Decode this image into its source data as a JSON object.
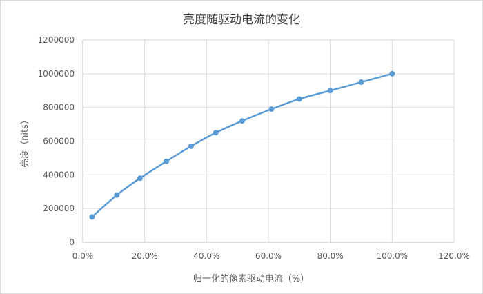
{
  "chart_data": {
    "type": "scatter",
    "title": "亮度随驱动电流的变化",
    "xlabel": "归一化的像素驱动电流（%）",
    "ylabel": "亮度（nits）",
    "x": [
      3,
      11,
      18.5,
      27,
      35,
      43,
      51.5,
      61,
      70,
      80,
      90,
      100
    ],
    "series": [
      {
        "values": [
          150000,
          280000,
          380000,
          480000,
          570000,
          650000,
          720000,
          790000,
          850000,
          900000,
          950000,
          1000000
        ],
        "color": "#5b9bd5",
        "line": "smooth",
        "markers": true
      }
    ],
    "xlim": [
      0,
      120
    ],
    "ylim": [
      0,
      1200000
    ],
    "x_ticks": [
      "0.0%",
      "20.0%",
      "40.0%",
      "60.0%",
      "80.0%",
      "100.0%",
      "120.0%"
    ],
    "y_ticks": [
      "0",
      "200000",
      "400000",
      "600000",
      "800000",
      "1000000",
      "1200000"
    ],
    "grid": true,
    "legend": "none"
  }
}
